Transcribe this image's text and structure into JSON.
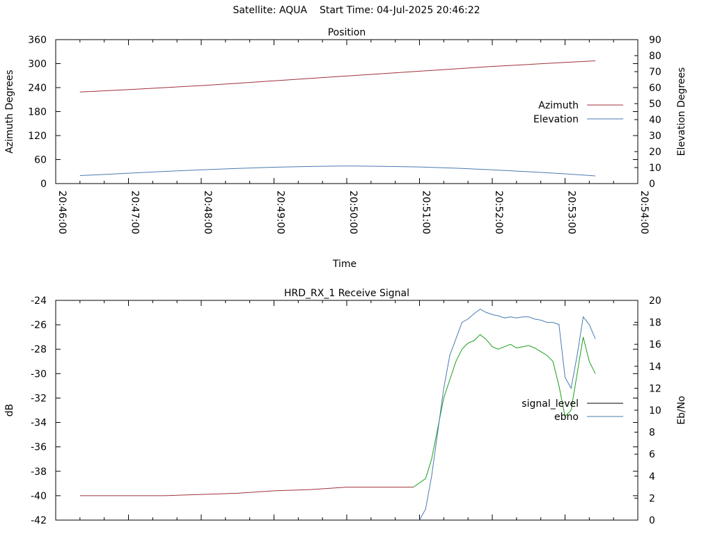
{
  "figure": {
    "satellite_label": "Satellite: AQUA",
    "start_time_label": "Start Time: 04-Jul-2025 20:46:22"
  },
  "chart_data": [
    {
      "type": "line",
      "title": "Position",
      "xlabel": "Time",
      "ylabel": "Azimuth Degrees",
      "y2label": "Elevation Degrees",
      "xlim": [
        "20:46:00",
        "20:54:00"
      ],
      "ylim": [
        0,
        360
      ],
      "y2lim": [
        0,
        90
      ],
      "x_ticks": [
        "20:46:00",
        "20:47:00",
        "20:48:00",
        "20:49:00",
        "20:50:00",
        "20:51:00",
        "20:52:00",
        "20:53:00",
        "20:54:00"
      ],
      "y_ticks": [
        "0",
        "60",
        "120",
        "180",
        "240",
        "300",
        "360"
      ],
      "y2_ticks": [
        "0",
        "10",
        "20",
        "30",
        "40",
        "50",
        "60",
        "70",
        "80",
        "90"
      ],
      "legend_position": "right",
      "colors": {
        "azimuth": "#a0303a",
        "elevation": "#4a7ab0"
      },
      "series": [
        {
          "name": "Azimuth",
          "axis": "left",
          "x": [
            "20:46:20",
            "20:47:00",
            "20:47:30",
            "20:48:00",
            "20:48:30",
            "20:49:00",
            "20:49:30",
            "20:50:00",
            "20:50:30",
            "20:51:00",
            "20:51:30",
            "20:52:00",
            "20:52:30",
            "20:53:00",
            "20:53:25"
          ],
          "values": [
            229,
            235,
            240,
            245,
            251,
            257,
            263,
            269,
            275,
            281,
            287,
            293,
            298,
            303,
            307
          ]
        },
        {
          "name": "Elevation",
          "axis": "right",
          "x": [
            "20:46:20",
            "20:46:40",
            "20:47:00",
            "20:47:30",
            "20:48:00",
            "20:48:30",
            "20:49:00",
            "20:49:30",
            "20:49:50",
            "20:50:00",
            "20:50:30",
            "20:51:00",
            "20:51:30",
            "20:52:00",
            "20:52:30",
            "20:53:00",
            "20:53:25"
          ],
          "values": [
            5,
            5.7,
            6.5,
            7.6,
            8.6,
            9.5,
            10.2,
            10.7,
            10.9,
            11,
            10.8,
            10.4,
            9.6,
            8.6,
            7.4,
            6.1,
            4.8
          ]
        }
      ]
    },
    {
      "type": "line",
      "title": "HRD_RX_1 Receive Signal",
      "xlabel": "",
      "ylabel": "dB",
      "y2label": "Eb/No",
      "xlim": [
        "20:46:00",
        "20:54:00"
      ],
      "ylim": [
        -42,
        -24
      ],
      "y2lim": [
        0,
        20
      ],
      "y_ticks": [
        "-42",
        "-40",
        "-38",
        "-36",
        "-34",
        "-32",
        "-30",
        "-28",
        "-26",
        "-24"
      ],
      "y2_ticks": [
        "0",
        "2",
        "4",
        "6",
        "8",
        "10",
        "12",
        "14",
        "16",
        "18",
        "20"
      ],
      "legend_position": "right",
      "legend": [
        {
          "name": "signal_level",
          "color": "#000000"
        },
        {
          "name": "ebno",
          "color": "#4a7ab0"
        }
      ],
      "colors": {
        "signal_level_low": "#a0303a",
        "signal_level_high": "#1aa01a",
        "ebno": "#4a7ab0"
      },
      "series": [
        {
          "name": "signal_level",
          "axis": "left",
          "x": [
            "20:46:20",
            "20:46:40",
            "20:47:00",
            "20:47:30",
            "20:48:00",
            "20:48:30",
            "20:49:00",
            "20:49:30",
            "20:50:00",
            "20:50:30",
            "20:50:55",
            "20:51:05",
            "20:51:10",
            "20:51:15",
            "20:51:20",
            "20:51:25",
            "20:51:30",
            "20:51:35",
            "20:51:40",
            "20:51:45",
            "20:51:50",
            "20:51:55",
            "20:52:00",
            "20:52:05",
            "20:52:10",
            "20:52:15",
            "20:52:20",
            "20:52:25",
            "20:52:30",
            "20:52:35",
            "20:52:40",
            "20:52:45",
            "20:52:50",
            "20:52:55",
            "20:53:00",
            "20:53:05",
            "20:53:10",
            "20:53:15",
            "20:53:20",
            "20:53:25"
          ],
          "values": [
            -40,
            -40,
            -40,
            -40,
            -39.9,
            -39.8,
            -39.6,
            -39.5,
            -39.3,
            -39.3,
            -39.3,
            -38.6,
            -37.0,
            -34.5,
            -32.0,
            -30.5,
            -29.0,
            -28.0,
            -27.5,
            -27.3,
            -26.8,
            -27.2,
            -27.8,
            -28.0,
            -27.8,
            -27.6,
            -27.9,
            -27.8,
            -27.7,
            -27.9,
            -28.2,
            -28.5,
            -29.0,
            -31.0,
            -33.5,
            -33.0,
            -30.0,
            -27.0,
            -29.0,
            -30.0
          ]
        },
        {
          "name": "ebno",
          "axis": "right",
          "x": [
            "20:51:00",
            "20:51:05",
            "20:51:10",
            "20:51:15",
            "20:51:20",
            "20:51:25",
            "20:51:30",
            "20:51:35",
            "20:51:40",
            "20:51:45",
            "20:51:50",
            "20:51:55",
            "20:52:00",
            "20:52:05",
            "20:52:10",
            "20:52:15",
            "20:52:20",
            "20:52:25",
            "20:52:30",
            "20:52:35",
            "20:52:40",
            "20:52:45",
            "20:52:50",
            "20:52:55",
            "20:53:00",
            "20:53:05",
            "20:53:10",
            "20:53:15",
            "20:53:20",
            "20:53:25"
          ],
          "values": [
            0,
            1.0,
            4.0,
            8.0,
            12.0,
            15.0,
            16.5,
            18.0,
            18.3,
            18.8,
            19.2,
            18.9,
            18.7,
            18.6,
            18.4,
            18.5,
            18.4,
            18.5,
            18.5,
            18.3,
            18.2,
            18.0,
            18.0,
            17.8,
            13.0,
            12.0,
            15.0,
            18.5,
            17.8,
            16.5
          ]
        }
      ]
    }
  ]
}
